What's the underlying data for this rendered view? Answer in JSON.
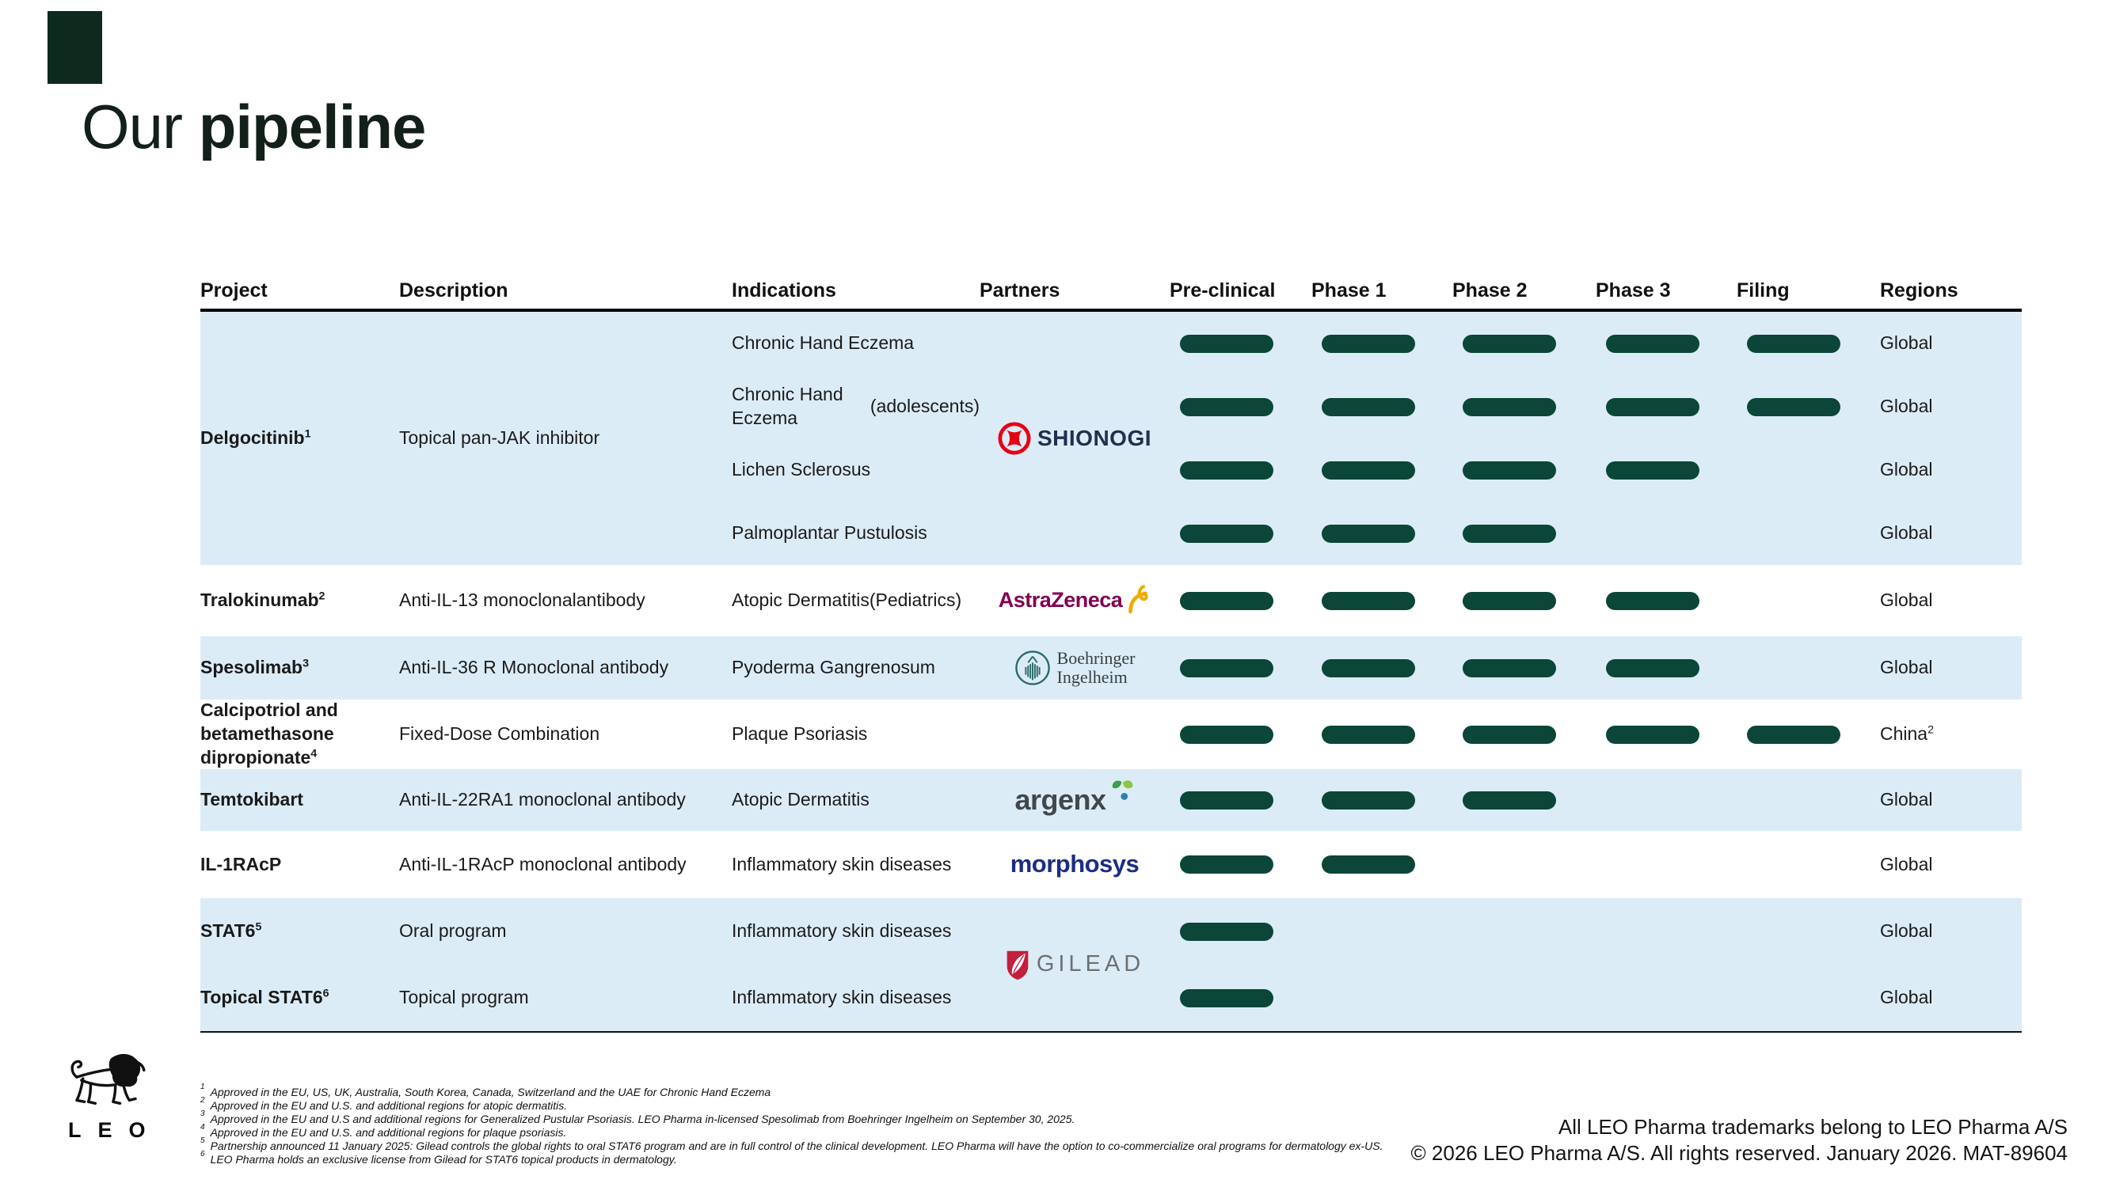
{
  "title": {
    "prefix": "Our",
    "emphasis": "pipeline"
  },
  "logo": {
    "text": "LEO"
  },
  "table": {
    "headers": [
      "Project",
      "Description",
      "Indications",
      "Partners",
      "Pre-clinical",
      "Phase 1",
      "Phase 2",
      "Phase 3",
      "Filing",
      "Regions"
    ]
  },
  "pipeline": {
    "phases": [
      "Pre-clinical",
      "Phase 1",
      "Phase 2",
      "Phase 3",
      "Filing"
    ],
    "groups": [
      {
        "project": "Delgocitinib",
        "sup": "1",
        "description": [
          "Topical pan-JAK inhibitor"
        ],
        "partner": "shionogi",
        "bg": "blue",
        "rows": [
          {
            "indication": [
              "Chronic Hand Eczema"
            ],
            "bars": 5,
            "region": "Global"
          },
          {
            "indication": [
              "Chronic Hand Eczema",
              "(adolescents)"
            ],
            "bars": 5,
            "region": "Global"
          },
          {
            "indication": [
              "Lichen Sclerosus"
            ],
            "bars": 4,
            "region": "Global"
          },
          {
            "indication": [
              "Palmoplantar Pustulosis"
            ],
            "bars": 3,
            "region": "Global"
          }
        ]
      },
      {
        "project": "Tralokinumab",
        "sup": "2",
        "description": [
          "Anti-IL-13 monoclonal",
          "antibody"
        ],
        "partner": "astrazeneca",
        "bg": "white",
        "rows": [
          {
            "indication": [
              "Atopic Dermatitis",
              "(Pediatrics)"
            ],
            "bars": 4,
            "region": "Global"
          }
        ]
      },
      {
        "project": "Spesolimab",
        "sup": "3",
        "description": [
          "Anti-IL-36 R Monoclonal antibody"
        ],
        "partner": "boehringer",
        "bg": "blue",
        "rows": [
          {
            "indication": [
              "Pyoderma Gangrenosum"
            ],
            "bars": 4,
            "region": "Global"
          }
        ]
      },
      {
        "project": "Calcipotriol and betamethasone dipropionate",
        "sup": "4",
        "description": [
          "Fixed-Dose Combination"
        ],
        "partner": null,
        "bg": "white",
        "rows": [
          {
            "indication": [
              "Plaque Psoriasis"
            ],
            "bars": 5,
            "region": "China",
            "region_sup": "2"
          }
        ]
      },
      {
        "project": "Temtokibart",
        "sup": "",
        "description": [
          "Anti-IL-22RA1 monoclonal antibody"
        ],
        "partner": "argenx",
        "bg": "blue",
        "rows": [
          {
            "indication": [
              "Atopic Dermatitis"
            ],
            "bars": 3,
            "region": "Global"
          }
        ]
      },
      {
        "project": "IL-1RAcP",
        "sup": "",
        "description": [
          "Anti-IL-1RAcP monoclonal antibody"
        ],
        "partner": "morphosys",
        "bg": "white",
        "rows": [
          {
            "indication": [
              "Inflammatory skin diseases"
            ],
            "bars": 2,
            "region": "Global"
          }
        ]
      },
      {
        "project": null,
        "sup": "",
        "description": null,
        "partner": "gilead",
        "bg": "blue",
        "rows": [
          {
            "project": "STAT6",
            "sup": "5",
            "description": [
              "Oral program"
            ],
            "indication": [
              "Inflammatory skin diseases"
            ],
            "bars": 1,
            "region": "Global"
          },
          {
            "project": "Topical STAT6",
            "sup": "6",
            "description": [
              "Topical program"
            ],
            "indication": [
              "Inflammatory skin diseases"
            ],
            "bars": 1,
            "region": "Global"
          }
        ]
      }
    ]
  },
  "partners": {
    "shionogi": {
      "name": "SHIONOGI"
    },
    "astrazeneca": {
      "name": "AstraZeneca"
    },
    "boehringer": {
      "line1": "Boehringer",
      "line2": "Ingelheim"
    },
    "argenx": {
      "name": "argenx"
    },
    "morphosys": {
      "name": "morphosys"
    },
    "gilead": {
      "name": "GILEAD"
    }
  },
  "footnotes": [
    {
      "num": "1",
      "text": "Approved in the EU, US, UK, Australia, South Korea, Canada, Switzerland and the UAE for Chronic Hand Eczema"
    },
    {
      "num": "2",
      "text": "Approved in the EU and U.S. and additional regions for atopic dermatitis."
    },
    {
      "num": "3",
      "text": "Approved in the EU and U.S and additional regions for Generalized Pustular Psoriasis. LEO Pharma in-licensed Spesolimab from Boehringer Ingelheim on September 30, 2025."
    },
    {
      "num": "4",
      "text": "Approved in the EU and U.S. and additional regions for plaque psoriasis."
    },
    {
      "num": "5",
      "text": "Partnership announced 11 January 2025: Gilead controls the global rights to oral STAT6 program and are in full control of the clinical development. LEO Pharma will have the option to co-commercialize oral programs for dermatology ex-US."
    },
    {
      "num": "6",
      "text": "LEO Pharma holds an exclusive license from Gilead for STAT6 topical products in dermatology."
    }
  ],
  "footer": {
    "line1": "All LEO Pharma trademarks belong to LEO Pharma A/S",
    "line2": "© 2026 LEO Pharma A/S. All rights reserved. January 2026. MAT-89604"
  },
  "colors": {
    "bar_green": "#0b4638",
    "row_blue": "#dcecf7",
    "corner_green": "#0e2a1f",
    "title_ink": "#132019",
    "shionogi_red": "#e60012",
    "astrazeneca_magenta": "#830051",
    "astrazeneca_gold": "#f0ab00",
    "boehringer_teal": "#2a6b68",
    "argenx_green_dark": "#3f9e46",
    "argenx_green_light": "#8dc63f",
    "argenx_blue": "#2e7fae",
    "morphosys_navy": "#1b2d85",
    "gilead_red": "#c41f3e",
    "gilead_gray": "#6d7073"
  }
}
